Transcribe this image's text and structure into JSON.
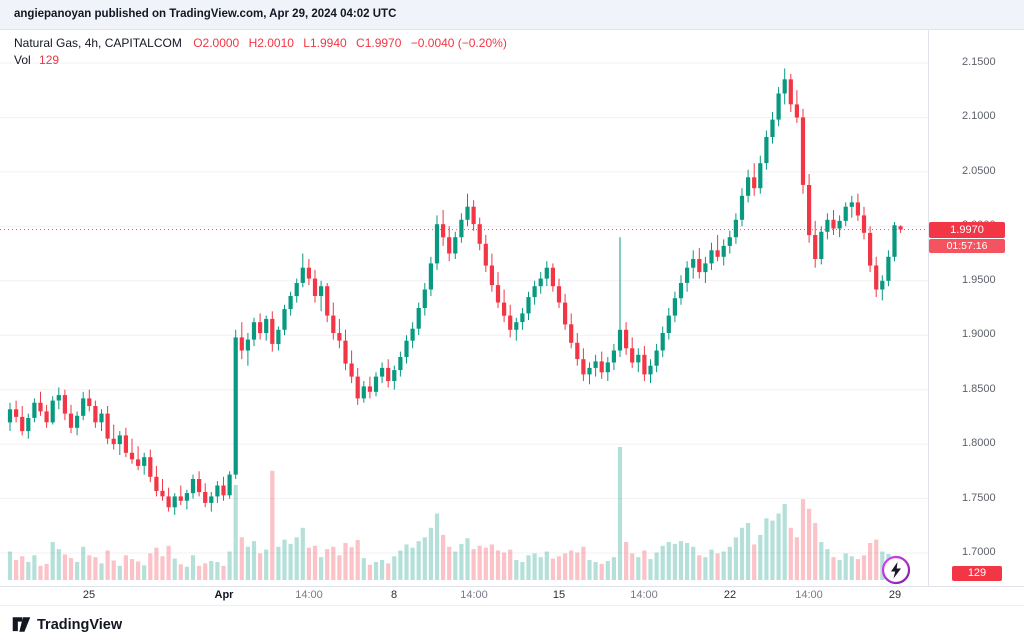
{
  "attribution": "angiepanoyan published on TradingView.com, Apr 29, 2024 04:02 UTC",
  "legend": {
    "symbol": "Natural Gas, 4h, CAPITALCOM",
    "open": "O2.0000",
    "high": "H2.0010",
    "low": "L1.9940",
    "close": "C1.9970",
    "change": "−0.0040 (−0.20%)",
    "vol_label": "Vol",
    "vol_value": "129"
  },
  "price_scale": {
    "last_price": "1.9970",
    "countdown": "01:57:16",
    "volume_value": "129"
  },
  "footer": {
    "brand": "TradingView"
  },
  "chart_data": {
    "type": "candlestick",
    "title": "Natural Gas, 4h, CAPITALCOM",
    "symbol": "Natural Gas",
    "interval": "4h",
    "exchange": "CAPITALCOM",
    "last": {
      "open": 2.0,
      "high": 2.001,
      "low": 1.994,
      "close": 1.997,
      "change": -0.004,
      "change_pct": -0.2,
      "volume": 129
    },
    "ylim": [
      1.676,
      2.171
    ],
    "grid": true,
    "price_ticks": [
      2.15,
      2.1,
      2.05,
      2.0,
      1.95,
      1.9,
      1.85,
      1.8,
      1.75,
      1.7
    ],
    "x_ticks": [
      {
        "label": "25",
        "index": 13,
        "kind": "day"
      },
      {
        "label": "Apr",
        "index": 35,
        "kind": "month"
      },
      {
        "label": "14:00",
        "index": 49,
        "kind": "hour"
      },
      {
        "label": "8",
        "index": 63,
        "kind": "day"
      },
      {
        "label": "14:00",
        "index": 76,
        "kind": "hour"
      },
      {
        "label": "15",
        "index": 90,
        "kind": "day"
      },
      {
        "label": "14:00",
        "index": 104,
        "kind": "hour"
      },
      {
        "label": "22",
        "index": 118,
        "kind": "day"
      },
      {
        "label": "14:00",
        "index": 131,
        "kind": "hour"
      },
      {
        "label": "29",
        "index": 145,
        "kind": "day"
      }
    ],
    "colors": {
      "up": "#089981",
      "down": "#f23645",
      "vol_up": "rgba(8,153,129,0.30)",
      "vol_down": "rgba(242,54,69,0.30)",
      "grid": "#f0f1f5",
      "last_line": "#f23645"
    },
    "candles_format": [
      "open",
      "high",
      "low",
      "close",
      "volume"
    ],
    "candles": [
      [
        1.82,
        1.838,
        1.812,
        1.832,
        600
      ],
      [
        1.832,
        1.84,
        1.82,
        1.825,
        420
      ],
      [
        1.825,
        1.835,
        1.808,
        1.812,
        500
      ],
      [
        1.812,
        1.828,
        1.805,
        1.824,
        380
      ],
      [
        1.824,
        1.842,
        1.82,
        1.838,
        520
      ],
      [
        1.838,
        1.848,
        1.826,
        1.83,
        300
      ],
      [
        1.83,
        1.836,
        1.815,
        1.82,
        340
      ],
      [
        1.82,
        1.844,
        1.818,
        1.84,
        800
      ],
      [
        1.84,
        1.852,
        1.832,
        1.845,
        650
      ],
      [
        1.845,
        1.85,
        1.822,
        1.828,
        540
      ],
      [
        1.828,
        1.836,
        1.81,
        1.815,
        460
      ],
      [
        1.815,
        1.83,
        1.808,
        1.826,
        380
      ],
      [
        1.826,
        1.848,
        1.822,
        1.842,
        700
      ],
      [
        1.842,
        1.85,
        1.83,
        1.835,
        520
      ],
      [
        1.835,
        1.84,
        1.815,
        1.82,
        480
      ],
      [
        1.82,
        1.832,
        1.812,
        1.828,
        350
      ],
      [
        1.828,
        1.835,
        1.8,
        1.805,
        620
      ],
      [
        1.805,
        1.818,
        1.795,
        1.8,
        410
      ],
      [
        1.8,
        1.812,
        1.79,
        1.808,
        300
      ],
      [
        1.808,
        1.815,
        1.788,
        1.792,
        520
      ],
      [
        1.792,
        1.805,
        1.782,
        1.786,
        440
      ],
      [
        1.786,
        1.798,
        1.776,
        1.78,
        390
      ],
      [
        1.78,
        1.792,
        1.772,
        1.788,
        310
      ],
      [
        1.788,
        1.795,
        1.765,
        1.77,
        560
      ],
      [
        1.77,
        1.78,
        1.752,
        1.757,
        680
      ],
      [
        1.757,
        1.768,
        1.748,
        1.752,
        500
      ],
      [
        1.752,
        1.76,
        1.738,
        1.742,
        720
      ],
      [
        1.742,
        1.755,
        1.735,
        1.752,
        450
      ],
      [
        1.752,
        1.762,
        1.744,
        1.748,
        330
      ],
      [
        1.748,
        1.758,
        1.74,
        1.755,
        280
      ],
      [
        1.755,
        1.772,
        1.75,
        1.768,
        520
      ],
      [
        1.768,
        1.775,
        1.752,
        1.756,
        300
      ],
      [
        1.756,
        1.764,
        1.742,
        1.746,
        350
      ],
      [
        1.746,
        1.756,
        1.738,
        1.752,
        400
      ],
      [
        1.752,
        1.766,
        1.746,
        1.762,
        380
      ],
      [
        1.762,
        1.77,
        1.748,
        1.753,
        300
      ],
      [
        1.753,
        1.775,
        1.75,
        1.772,
        600
      ],
      [
        1.772,
        1.905,
        1.768,
        1.898,
        2000
      ],
      [
        1.898,
        1.912,
        1.878,
        1.886,
        900
      ],
      [
        1.886,
        1.902,
        1.872,
        1.896,
        700
      ],
      [
        1.896,
        1.916,
        1.89,
        1.912,
        820
      ],
      [
        1.912,
        1.92,
        1.896,
        1.902,
        560
      ],
      [
        1.902,
        1.918,
        1.895,
        1.915,
        640
      ],
      [
        1.915,
        1.922,
        1.885,
        1.892,
        2300
      ],
      [
        1.892,
        1.908,
        1.886,
        1.905,
        700
      ],
      [
        1.905,
        1.928,
        1.9,
        1.924,
        850
      ],
      [
        1.924,
        1.94,
        1.918,
        1.936,
        760
      ],
      [
        1.936,
        1.952,
        1.93,
        1.948,
        900
      ],
      [
        1.948,
        1.975,
        1.944,
        1.962,
        1100
      ],
      [
        1.962,
        1.97,
        1.946,
        1.952,
        680
      ],
      [
        1.952,
        1.96,
        1.93,
        1.936,
        720
      ],
      [
        1.936,
        1.95,
        1.922,
        1.945,
        480
      ],
      [
        1.945,
        1.948,
        1.912,
        1.918,
        650
      ],
      [
        1.918,
        1.93,
        1.896,
        1.902,
        700
      ],
      [
        1.902,
        1.915,
        1.888,
        1.895,
        520
      ],
      [
        1.895,
        1.905,
        1.868,
        1.874,
        780
      ],
      [
        1.874,
        1.886,
        1.856,
        1.862,
        690
      ],
      [
        1.862,
        1.87,
        1.836,
        1.842,
        840
      ],
      [
        1.842,
        1.858,
        1.838,
        1.853,
        460
      ],
      [
        1.853,
        1.862,
        1.842,
        1.848,
        320
      ],
      [
        1.848,
        1.866,
        1.844,
        1.862,
        380
      ],
      [
        1.862,
        1.875,
        1.856,
        1.87,
        420
      ],
      [
        1.87,
        1.878,
        1.852,
        1.858,
        350
      ],
      [
        1.858,
        1.872,
        1.85,
        1.868,
        500
      ],
      [
        1.868,
        1.885,
        1.862,
        1.88,
        620
      ],
      [
        1.88,
        1.9,
        1.874,
        1.895,
        750
      ],
      [
        1.895,
        1.912,
        1.888,
        1.906,
        680
      ],
      [
        1.906,
        1.93,
        1.9,
        1.925,
        820
      ],
      [
        1.925,
        1.948,
        1.918,
        1.942,
        900
      ],
      [
        1.942,
        1.972,
        1.936,
        1.966,
        1100
      ],
      [
        1.966,
        2.01,
        1.96,
        2.002,
        1400
      ],
      [
        2.002,
        2.015,
        1.982,
        1.99,
        950
      ],
      [
        1.99,
        2.0,
        1.968,
        1.975,
        700
      ],
      [
        1.975,
        1.995,
        1.97,
        1.99,
        600
      ],
      [
        1.99,
        2.012,
        1.985,
        2.006,
        760
      ],
      [
        2.006,
        2.03,
        2.0,
        2.018,
        880
      ],
      [
        2.018,
        2.024,
        1.996,
        2.002,
        650
      ],
      [
        2.002,
        2.008,
        1.978,
        1.984,
        720
      ],
      [
        1.984,
        1.992,
        1.958,
        1.964,
        680
      ],
      [
        1.964,
        1.975,
        1.94,
        1.946,
        750
      ],
      [
        1.946,
        1.958,
        1.925,
        1.93,
        620
      ],
      [
        1.93,
        1.942,
        1.912,
        1.918,
        580
      ],
      [
        1.918,
        1.928,
        1.898,
        1.905,
        640
      ],
      [
        1.905,
        1.916,
        1.895,
        1.912,
        420
      ],
      [
        1.912,
        1.925,
        1.905,
        1.92,
        380
      ],
      [
        1.92,
        1.94,
        1.914,
        1.935,
        520
      ],
      [
        1.935,
        1.95,
        1.928,
        1.945,
        560
      ],
      [
        1.945,
        1.958,
        1.938,
        1.952,
        480
      ],
      [
        1.952,
        1.968,
        1.945,
        1.962,
        600
      ],
      [
        1.962,
        1.966,
        1.94,
        1.945,
        450
      ],
      [
        1.945,
        1.952,
        1.925,
        1.93,
        500
      ],
      [
        1.93,
        1.938,
        1.905,
        1.91,
        560
      ],
      [
        1.91,
        1.92,
        1.888,
        1.893,
        620
      ],
      [
        1.893,
        1.902,
        1.872,
        1.878,
        580
      ],
      [
        1.878,
        1.888,
        1.858,
        1.864,
        700
      ],
      [
        1.864,
        1.875,
        1.855,
        1.87,
        420
      ],
      [
        1.87,
        1.882,
        1.862,
        1.876,
        380
      ],
      [
        1.876,
        1.885,
        1.86,
        1.866,
        340
      ],
      [
        1.866,
        1.88,
        1.858,
        1.875,
        400
      ],
      [
        1.875,
        1.892,
        1.868,
        1.886,
        480
      ],
      [
        1.886,
        1.99,
        1.88,
        1.905,
        2800
      ],
      [
        1.905,
        1.912,
        1.882,
        1.888,
        800
      ],
      [
        1.888,
        1.898,
        1.87,
        1.875,
        560
      ],
      [
        1.875,
        1.888,
        1.866,
        1.882,
        480
      ],
      [
        1.882,
        1.89,
        1.858,
        1.864,
        620
      ],
      [
        1.864,
        1.878,
        1.856,
        1.872,
        440
      ],
      [
        1.872,
        1.892,
        1.866,
        1.886,
        580
      ],
      [
        1.886,
        1.908,
        1.88,
        1.902,
        720
      ],
      [
        1.902,
        1.925,
        1.896,
        1.918,
        800
      ],
      [
        1.918,
        1.94,
        1.912,
        1.934,
        760
      ],
      [
        1.934,
        1.955,
        1.928,
        1.948,
        820
      ],
      [
        1.948,
        1.968,
        1.94,
        1.962,
        780
      ],
      [
        1.962,
        1.978,
        1.952,
        1.97,
        700
      ],
      [
        1.97,
        1.98,
        1.952,
        1.958,
        520
      ],
      [
        1.958,
        1.972,
        1.948,
        1.966,
        480
      ],
      [
        1.966,
        1.985,
        1.96,
        1.978,
        640
      ],
      [
        1.978,
        1.992,
        1.968,
        1.972,
        560
      ],
      [
        1.972,
        1.988,
        1.964,
        1.982,
        600
      ],
      [
        1.982,
        1.996,
        1.975,
        1.99,
        700
      ],
      [
        1.99,
        2.012,
        1.984,
        2.006,
        900
      ],
      [
        2.006,
        2.035,
        2.0,
        2.028,
        1100
      ],
      [
        2.028,
        2.052,
        2.022,
        2.045,
        1200
      ],
      [
        2.045,
        2.058,
        2.028,
        2.035,
        750
      ],
      [
        2.035,
        2.065,
        2.03,
        2.058,
        950
      ],
      [
        2.058,
        2.088,
        2.052,
        2.082,
        1300
      ],
      [
        2.082,
        2.105,
        2.076,
        2.098,
        1250
      ],
      [
        2.098,
        2.128,
        2.092,
        2.122,
        1400
      ],
      [
        2.122,
        2.145,
        2.112,
        2.135,
        1600
      ],
      [
        2.135,
        2.14,
        2.105,
        2.112,
        1100
      ],
      [
        2.112,
        2.125,
        2.095,
        2.1,
        900
      ],
      [
        2.1,
        2.108,
        2.03,
        2.038,
        1700
      ],
      [
        2.038,
        2.048,
        1.985,
        1.992,
        1500
      ],
      [
        1.992,
        2.005,
        1.962,
        1.97,
        1200
      ],
      [
        1.97,
        2.0,
        1.965,
        1.995,
        800
      ],
      [
        1.995,
        2.012,
        1.988,
        2.006,
        650
      ],
      [
        2.006,
        2.015,
        1.992,
        1.998,
        480
      ],
      [
        1.998,
        2.01,
        1.99,
        2.005,
        420
      ],
      [
        2.005,
        2.022,
        2.0,
        2.018,
        560
      ],
      [
        2.018,
        2.028,
        2.008,
        2.022,
        500
      ],
      [
        2.022,
        2.03,
        2.005,
        2.01,
        440
      ],
      [
        2.01,
        2.018,
        1.988,
        1.994,
        520
      ],
      [
        1.994,
        2.0,
        1.958,
        1.964,
        780
      ],
      [
        1.964,
        1.972,
        1.935,
        1.942,
        850
      ],
      [
        1.942,
        1.955,
        1.932,
        1.95,
        600
      ],
      [
        1.95,
        1.978,
        1.945,
        1.972,
        550
      ],
      [
        1.972,
        2.004,
        1.968,
        2.001,
        480
      ],
      [
        2.0,
        2.001,
        1.994,
        1.997,
        129
      ]
    ]
  }
}
